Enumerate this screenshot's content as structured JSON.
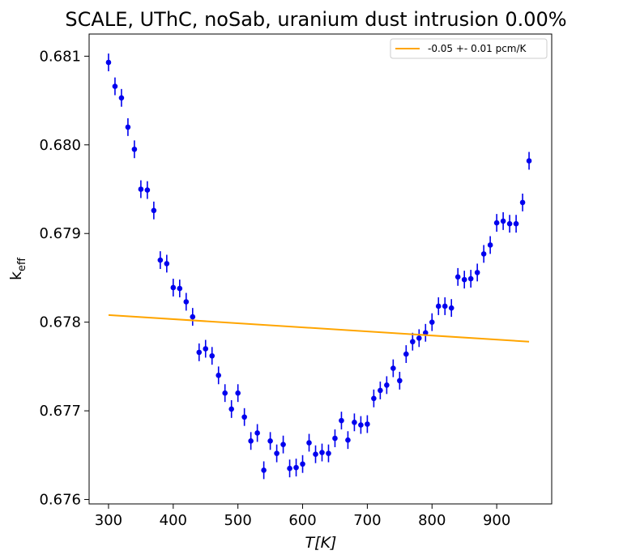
{
  "chart_data": {
    "type": "scatter",
    "title": "SCALE, UThC, noSab, uranium dust intrusion  0.00%",
    "xlabel": "T[K]",
    "ylabel_main": "k",
    "ylabel_sub": "eff",
    "xlim": [
      270,
      985
    ],
    "ylim": [
      0.67595,
      0.68125
    ],
    "xticks": [
      300,
      400,
      500,
      600,
      700,
      800,
      900
    ],
    "yticks": [
      0.676,
      0.677,
      0.678,
      0.679,
      0.68,
      0.681
    ],
    "xtick_labels": [
      "300",
      "400",
      "500",
      "600",
      "700",
      "800",
      "900"
    ],
    "ytick_labels": [
      "0.676",
      "0.677",
      "0.678",
      "0.679",
      "0.680",
      "0.681"
    ],
    "legend_position": "top-right",
    "marker_color": "#0000ee",
    "fit_color": "#ffa500",
    "series": [
      {
        "x": [
          300,
          310,
          320,
          330,
          340,
          350,
          360,
          370,
          380,
          390,
          400,
          410,
          420,
          430,
          440,
          450,
          460,
          470,
          480,
          490,
          500,
          510,
          520,
          530,
          540,
          550,
          560,
          570,
          580,
          590,
          600,
          610,
          620,
          630,
          640,
          650,
          660,
          670,
          680,
          690,
          700,
          710,
          720,
          730,
          740,
          750,
          760,
          770,
          780,
          790,
          800,
          810,
          820,
          830,
          840,
          850,
          860,
          870,
          880,
          890,
          900,
          910,
          920,
          930,
          940,
          950
        ],
        "y": [
          0.68093,
          0.68066,
          0.68053,
          0.6802,
          0.67995,
          0.6795,
          0.67949,
          0.67926,
          0.6787,
          0.67866,
          0.67839,
          0.67838,
          0.67823,
          0.67806,
          0.67766,
          0.6777,
          0.67762,
          0.6774,
          0.6772,
          0.67702,
          0.6772,
          0.67693,
          0.67666,
          0.67675,
          0.67633,
          0.67666,
          0.67652,
          0.67662,
          0.67635,
          0.67636,
          0.6764,
          0.67664,
          0.67651,
          0.67653,
          0.67652,
          0.67669,
          0.67689,
          0.67667,
          0.67687,
          0.67684,
          0.67685,
          0.67714,
          0.67723,
          0.67729,
          0.67748,
          0.67734,
          0.67764,
          0.67778,
          0.67782,
          0.67788,
          0.678,
          0.67818,
          0.67818,
          0.67816,
          0.67851,
          0.67848,
          0.67849,
          0.67856,
          0.67877,
          0.67887,
          0.67912,
          0.67914,
          0.67911,
          0.67911,
          0.67935,
          0.67982
        ],
        "yerr": 0.0001
      }
    ],
    "fit": {
      "name": "-0.05 +- 0.01 pcm/K",
      "x": [
        300,
        950
      ],
      "y": [
        0.67808,
        0.67778
      ]
    }
  }
}
